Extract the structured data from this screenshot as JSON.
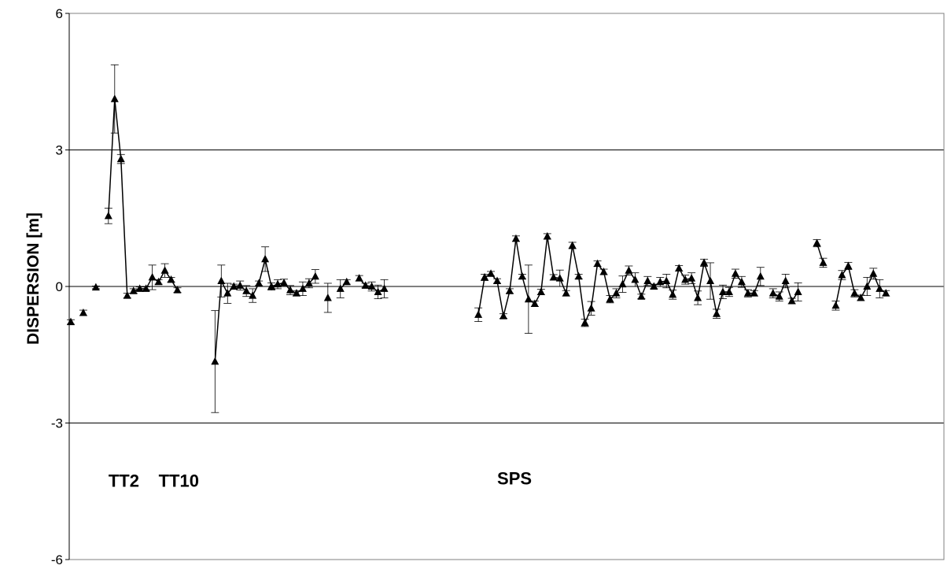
{
  "chart_data": {
    "type": "scatter",
    "title": "",
    "xlabel": "",
    "ylabel": "DISPERSION [m]",
    "ylim": [
      -6,
      6
    ],
    "xlim": [
      1,
      139
    ],
    "yticks": [
      6,
      3,
      0,
      -3,
      -6
    ],
    "ytick_labels": [
      "6",
      "3",
      "0",
      "-3",
      "-6"
    ],
    "gridlines_y": [
      3,
      0,
      -3
    ],
    "marker": "triangle",
    "color": "#000000",
    "annotations": [
      {
        "text": "TT2",
        "x": 7,
        "y": -4.4
      },
      {
        "text": "TT10",
        "x": 15,
        "y": -4.4
      },
      {
        "text": "SPS",
        "x": 69,
        "y": -4.35
      }
    ],
    "segments": [
      {
        "points": [
          {
            "x": 1,
            "y": -0.78,
            "err": 0.05
          }
        ]
      },
      {
        "points": [
          {
            "x": 3,
            "y": -0.58,
            "err": 0.06
          }
        ]
      },
      {
        "points": [
          {
            "x": 5,
            "y": -0.02,
            "err": 0.03
          }
        ]
      },
      {
        "points": [
          {
            "x": 7,
            "y": 1.55,
            "err": 0.17
          },
          {
            "x": 8,
            "y": 4.12,
            "err": 0.75
          },
          {
            "x": 9,
            "y": 2.8,
            "err": 0.1
          },
          {
            "x": 10,
            "y": -0.2,
            "err": 0.05
          }
        ]
      },
      {
        "points": [
          {
            "x": 11,
            "y": -0.1,
            "err": 0.05
          },
          {
            "x": 12,
            "y": -0.05,
            "err": 0.04
          },
          {
            "x": 13,
            "y": -0.05,
            "err": 0.04
          },
          {
            "x": 14,
            "y": 0.2,
            "err": 0.27
          },
          {
            "x": 15,
            "y": 0.1,
            "err": 0.05
          },
          {
            "x": 16,
            "y": 0.35,
            "err": 0.15
          },
          {
            "x": 17,
            "y": 0.15,
            "err": 0.05
          },
          {
            "x": 18,
            "y": -0.08,
            "err": 0.05
          }
        ]
      },
      {
        "points": [
          {
            "x": 24,
            "y": -1.65,
            "err": 1.12
          },
          {
            "x": 25,
            "y": 0.12,
            "err": 0.35
          },
          {
            "x": 26,
            "y": -0.15,
            "err": 0.22
          },
          {
            "x": 27,
            "y": 0.0,
            "err": 0.05
          },
          {
            "x": 28,
            "y": 0.02,
            "err": 0.1
          },
          {
            "x": 29,
            "y": -0.1,
            "err": 0.12
          },
          {
            "x": 30,
            "y": -0.2,
            "err": 0.15
          },
          {
            "x": 31,
            "y": 0.07,
            "err": 0.05
          },
          {
            "x": 32,
            "y": 0.6,
            "err": 0.27
          },
          {
            "x": 33,
            "y": 0.0,
            "err": 0.08
          },
          {
            "x": 34,
            "y": 0.05,
            "err": 0.1
          },
          {
            "x": 35,
            "y": 0.08,
            "err": 0.08
          },
          {
            "x": 36,
            "y": -0.08,
            "err": 0.1
          },
          {
            "x": 37,
            "y": -0.15,
            "err": 0.06
          },
          {
            "x": 38,
            "y": -0.05,
            "err": 0.15
          },
          {
            "x": 39,
            "y": 0.07,
            "err": 0.1
          },
          {
            "x": 40,
            "y": 0.22,
            "err": 0.15
          }
        ]
      },
      {
        "points": [
          {
            "x": 42,
            "y": -0.25,
            "err": 0.32
          }
        ]
      },
      {
        "points": [
          {
            "x": 44,
            "y": -0.05,
            "err": 0.2
          },
          {
            "x": 45,
            "y": 0.1,
            "err": 0.05
          }
        ]
      },
      {
        "points": [
          {
            "x": 47,
            "y": 0.18,
            "err": 0.06
          },
          {
            "x": 48,
            "y": 0.02,
            "err": 0.05
          },
          {
            "x": 49,
            "y": 0.0,
            "err": 0.1
          },
          {
            "x": 50,
            "y": -0.12,
            "err": 0.15
          },
          {
            "x": 51,
            "y": -0.05,
            "err": 0.2
          }
        ]
      },
      {
        "points": [
          {
            "x": 66,
            "y": -0.62,
            "err": 0.15
          },
          {
            "x": 67,
            "y": 0.2,
            "err": 0.07
          },
          {
            "x": 68,
            "y": 0.28,
            "err": 0.05
          },
          {
            "x": 69,
            "y": 0.12,
            "err": 0.05
          },
          {
            "x": 70,
            "y": -0.65,
            "err": 0.05
          },
          {
            "x": 71,
            "y": -0.1,
            "err": 0.05
          },
          {
            "x": 72,
            "y": 1.05,
            "err": 0.06
          },
          {
            "x": 73,
            "y": 0.22,
            "err": 0.05
          },
          {
            "x": 74,
            "y": -0.28,
            "err": 0.75
          },
          {
            "x": 75,
            "y": -0.38,
            "err": 0.06
          },
          {
            "x": 76,
            "y": -0.12,
            "err": 0.06
          },
          {
            "x": 77,
            "y": 1.1,
            "err": 0.06
          },
          {
            "x": 78,
            "y": 0.2,
            "err": 0.06
          },
          {
            "x": 79,
            "y": 0.18,
            "err": 0.18
          },
          {
            "x": 80,
            "y": -0.15,
            "err": 0.06
          },
          {
            "x": 81,
            "y": 0.9,
            "err": 0.07
          },
          {
            "x": 82,
            "y": 0.22,
            "err": 0.05
          },
          {
            "x": 83,
            "y": -0.8,
            "err": 0.08
          },
          {
            "x": 84,
            "y": -0.48,
            "err": 0.15
          },
          {
            "x": 85,
            "y": 0.5,
            "err": 0.06
          },
          {
            "x": 86,
            "y": 0.32,
            "err": 0.06
          },
          {
            "x": 87,
            "y": -0.28,
            "err": 0.08
          },
          {
            "x": 88,
            "y": -0.15,
            "err": 0.1
          },
          {
            "x": 89,
            "y": 0.05,
            "err": 0.18
          },
          {
            "x": 90,
            "y": 0.35,
            "err": 0.1
          },
          {
            "x": 91,
            "y": 0.15,
            "err": 0.15
          },
          {
            "x": 92,
            "y": -0.22,
            "err": 0.05
          },
          {
            "x": 93,
            "y": 0.12,
            "err": 0.1
          },
          {
            "x": 94,
            "y": 0.0,
            "err": 0.05
          },
          {
            "x": 95,
            "y": 0.1,
            "err": 0.1
          },
          {
            "x": 96,
            "y": 0.12,
            "err": 0.15
          },
          {
            "x": 97,
            "y": -0.18,
            "err": 0.1
          },
          {
            "x": 98,
            "y": 0.4,
            "err": 0.06
          },
          {
            "x": 99,
            "y": 0.15,
            "err": 0.1
          },
          {
            "x": 100,
            "y": 0.18,
            "err": 0.12
          },
          {
            "x": 101,
            "y": -0.25,
            "err": 0.15
          },
          {
            "x": 102,
            "y": 0.52,
            "err": 0.08
          },
          {
            "x": 103,
            "y": 0.12,
            "err": 0.4
          },
          {
            "x": 104,
            "y": -0.6,
            "err": 0.1
          },
          {
            "x": 105,
            "y": -0.12,
            "err": 0.15
          },
          {
            "x": 106,
            "y": -0.12,
            "err": 0.1
          },
          {
            "x": 107,
            "y": 0.28,
            "err": 0.1
          },
          {
            "x": 108,
            "y": 0.1,
            "err": 0.12
          },
          {
            "x": 109,
            "y": -0.15,
            "err": 0.08
          },
          {
            "x": 110,
            "y": -0.15,
            "err": 0.06
          },
          {
            "x": 111,
            "y": 0.22,
            "err": 0.2
          }
        ]
      },
      {
        "points": [
          {
            "x": 113,
            "y": -0.15,
            "err": 0.1
          },
          {
            "x": 114,
            "y": -0.22,
            "err": 0.1
          },
          {
            "x": 115,
            "y": 0.12,
            "err": 0.15
          },
          {
            "x": 116,
            "y": -0.32,
            "err": 0.06
          },
          {
            "x": 117,
            "y": -0.12,
            "err": 0.2
          }
        ]
      },
      {
        "points": [
          {
            "x": 120,
            "y": 0.95,
            "err": 0.08
          },
          {
            "x": 121,
            "y": 0.52,
            "err": 0.1
          }
        ]
      },
      {
        "points": [
          {
            "x": 123,
            "y": -0.42,
            "err": 0.1
          },
          {
            "x": 124,
            "y": 0.25,
            "err": 0.1
          },
          {
            "x": 125,
            "y": 0.45,
            "err": 0.08
          },
          {
            "x": 126,
            "y": -0.15,
            "err": 0.08
          },
          {
            "x": 127,
            "y": -0.25,
            "err": 0.06
          },
          {
            "x": 128,
            "y": 0.0,
            "err": 0.2
          },
          {
            "x": 129,
            "y": 0.28,
            "err": 0.12
          },
          {
            "x": 130,
            "y": -0.05,
            "err": 0.2
          },
          {
            "x": 131,
            "y": -0.15,
            "err": 0.06
          }
        ]
      }
    ]
  }
}
